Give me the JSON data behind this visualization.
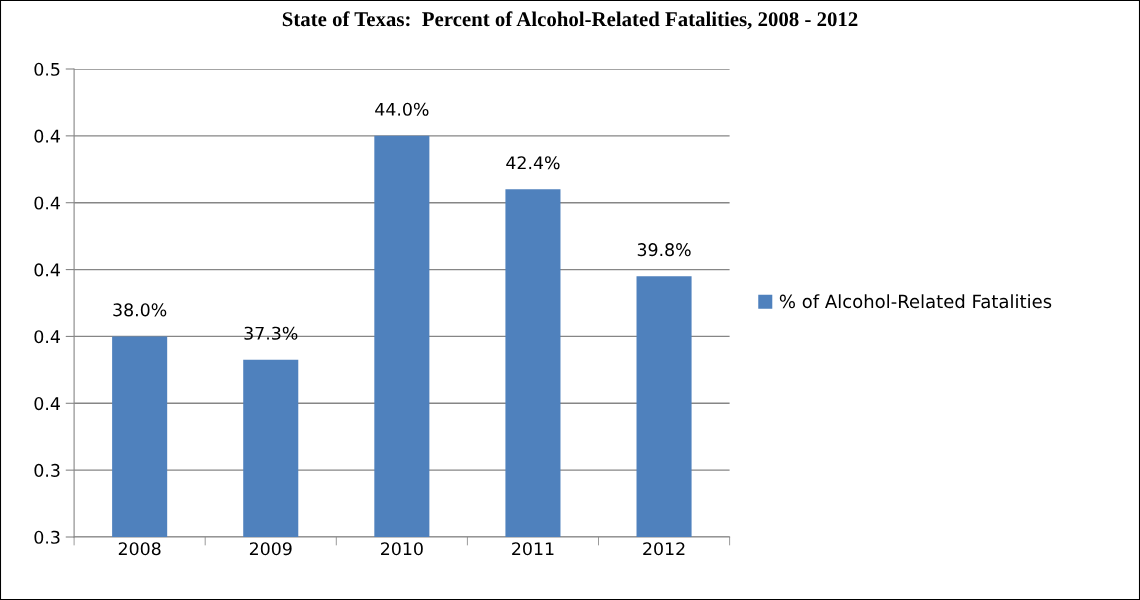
{
  "chart_data": {
    "type": "bar",
    "title": "State of Texas:  Percent of Alcohol-Related Fatalities, 2008 - 2012",
    "categories": [
      "2008",
      "2009",
      "2010",
      "2011",
      "2012"
    ],
    "series": [
      {
        "name": "% of Alcohol-Related Fatalities",
        "color": "#4f81bd",
        "values": [
          0.38,
          0.373,
          0.44,
          0.424,
          0.398
        ],
        "value_labels": [
          "38.0%",
          "37.3%",
          "44.0%",
          "42.4%",
          "39.8%"
        ]
      }
    ],
    "ylim": [
      0.32,
      0.46
    ],
    "yticks": [
      {
        "value": 0.32,
        "label": "0.3"
      },
      {
        "value": 0.34,
        "label": "0.3"
      },
      {
        "value": 0.36,
        "label": "0.4"
      },
      {
        "value": 0.38,
        "label": "0.4"
      },
      {
        "value": 0.4,
        "label": "0.4"
      },
      {
        "value": 0.42,
        "label": "0.4"
      },
      {
        "value": 0.44,
        "label": "0.4"
      },
      {
        "value": 0.46,
        "label": "0.5"
      }
    ],
    "grid": "y",
    "legend": "right"
  }
}
